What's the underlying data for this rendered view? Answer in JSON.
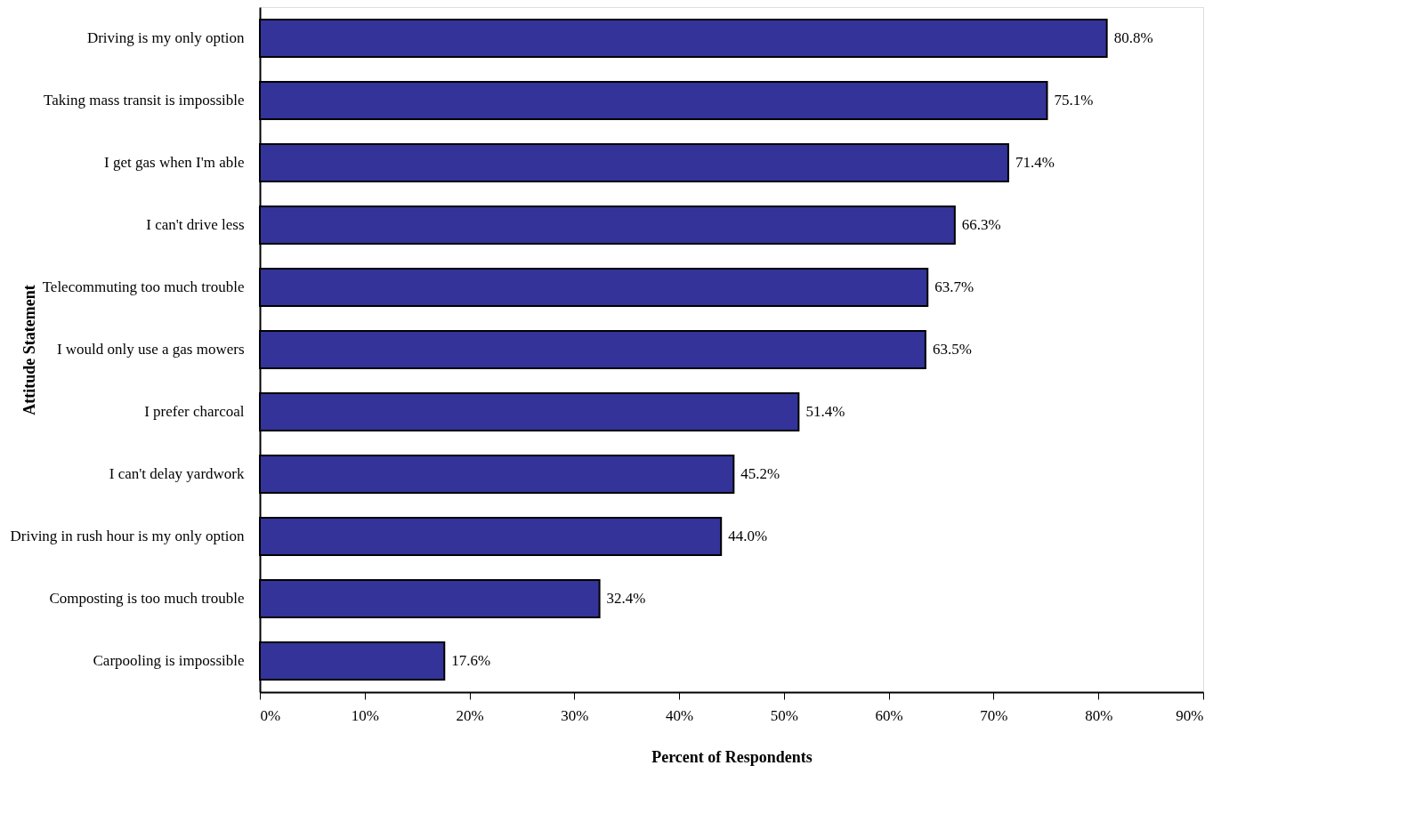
{
  "chart_data": {
    "type": "bar",
    "orientation": "horizontal",
    "xlabel": "Percent of Respondents",
    "ylabel": "Attitude Statement",
    "categories": [
      "Driving is my only option",
      "Taking mass transit is impossible",
      "I get gas when I'm able",
      "I can't drive less",
      "Telecommuting too much trouble",
      "I would only use a gas mowers",
      "I prefer charcoal",
      "I can't delay yardwork",
      "Driving in rush hour is my only option",
      "Composting is too much trouble",
      "Carpooling is impossible"
    ],
    "values": [
      80.8,
      75.1,
      71.4,
      66.3,
      63.7,
      63.5,
      51.4,
      45.2,
      44.0,
      32.4,
      17.6
    ],
    "value_labels": [
      "80.8%",
      "75.1%",
      "71.4%",
      "66.3%",
      "63.7%",
      "63.5%",
      "51.4%",
      "45.2%",
      "44.0%",
      "32.4%",
      "17.6%"
    ],
    "color": "#333399",
    "xlim": [
      0,
      90
    ],
    "xticks": [
      {
        "value": 0,
        "label": "0%"
      },
      {
        "value": 10,
        "label": "10%"
      },
      {
        "value": 20,
        "label": "20%"
      },
      {
        "value": 30,
        "label": "30%"
      },
      {
        "value": 40,
        "label": "40%"
      },
      {
        "value": 50,
        "label": "50%"
      },
      {
        "value": 60,
        "label": "60%"
      },
      {
        "value": 70,
        "label": "70%"
      },
      {
        "value": 80,
        "label": "80%"
      },
      {
        "value": 90,
        "label": "90%"
      }
    ],
    "grid": false
  }
}
